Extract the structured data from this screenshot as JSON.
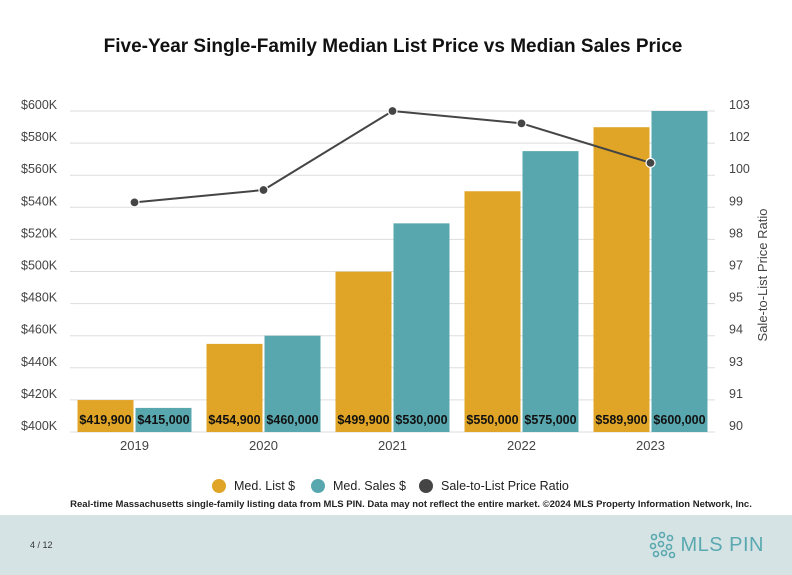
{
  "chart_data": {
    "type": "bar",
    "title": "Five-Year Single-Family Median List Price vs Median Sales Price",
    "categories": [
      "2019",
      "2020",
      "2021",
      "2022",
      "2023"
    ],
    "series": [
      {
        "name": "Med. List $",
        "values": [
          419900,
          454900,
          499900,
          550000,
          589900
        ],
        "labels": [
          "$419,900",
          "$454,900",
          "$499,900",
          "$550,000",
          "$589,900"
        ],
        "color": "#e0a526"
      },
      {
        "name": "Med. Sales $",
        "values": [
          415000,
          460000,
          530000,
          575000,
          600000
        ],
        "labels": [
          "$415,000",
          "$460,000",
          "$530,000",
          "$575,000",
          "$600,000"
        ],
        "color": "#58a7af"
      }
    ],
    "line_series": {
      "name": "Sale-to-List Price Ratio",
      "values": [
        99.3,
        99.8,
        103.0,
        102.5,
        100.9
      ],
      "color": "#454545",
      "axis": "right"
    },
    "ylim": [
      400000,
      600000
    ],
    "y_ticks": [
      "$400K",
      "$420K",
      "$440K",
      "$460K",
      "$480K",
      "$500K",
      "$520K",
      "$540K",
      "$560K",
      "$580K",
      "$600K"
    ],
    "y2lim": [
      90,
      103
    ],
    "y2_ticks": [
      "90",
      "91",
      "93",
      "94",
      "95",
      "97",
      "98",
      "99",
      "100",
      "102",
      "103"
    ],
    "y2label": "Sale-to-List Price Ratio",
    "legend_position": "bottom",
    "grid": true,
    "note": "Real-time Massachusetts single-family listing data from MLS PIN. Data may not reflect the entire market. ©2024 MLS Property Information Network, Inc."
  },
  "footer": {
    "page": "4 / 12",
    "logo_text": "MLS PIN"
  }
}
